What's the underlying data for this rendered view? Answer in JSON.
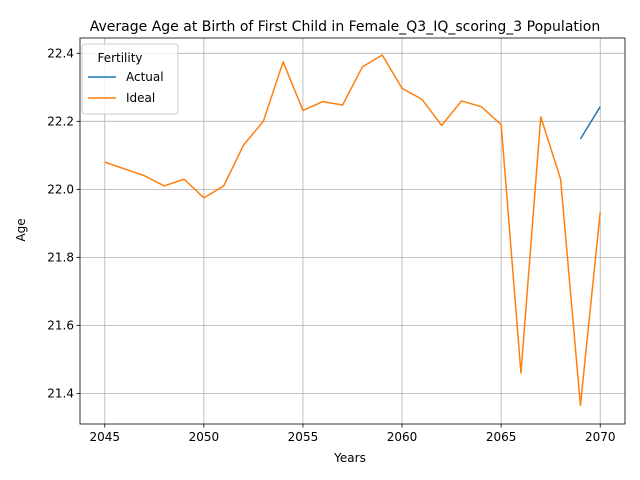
{
  "chart_data": {
    "type": "line",
    "title": "Average Age at Birth of First Child in Female_Q3_IQ_scoring_3 Population",
    "xlabel": "Years",
    "ylabel": "Age",
    "xlim": [
      2043.75,
      2071.25
    ],
    "ylim": [
      21.31,
      22.445
    ],
    "xticks": [
      2045,
      2050,
      2055,
      2060,
      2065,
      2070
    ],
    "yticks": [
      21.4,
      21.6,
      21.8,
      22.0,
      22.2,
      22.4
    ],
    "grid": true,
    "legend": {
      "title": "Fertility",
      "placement": "top-left"
    },
    "series": [
      {
        "name": "Actual",
        "color": "#1f77b4",
        "x": [
          2069,
          2070
        ],
        "values": [
          22.148,
          22.243
        ]
      },
      {
        "name": "Ideal",
        "color": "#ff7f0e",
        "x": [
          2045,
          2046,
          2047,
          2048,
          2049,
          2050,
          2051,
          2052,
          2053,
          2054,
          2055,
          2056,
          2057,
          2058,
          2059,
          2060,
          2061,
          2062,
          2063,
          2064,
          2065,
          2066,
          2067,
          2068,
          2069,
          2070
        ],
        "values": [
          22.08,
          22.06,
          22.04,
          22.01,
          22.03,
          21.975,
          22.01,
          22.13,
          22.2,
          22.375,
          22.232,
          22.258,
          22.248,
          22.36,
          22.395,
          22.297,
          22.265,
          22.188,
          22.26,
          22.243,
          22.19,
          21.46,
          22.213,
          22.03,
          21.365,
          21.933
        ]
      }
    ]
  }
}
